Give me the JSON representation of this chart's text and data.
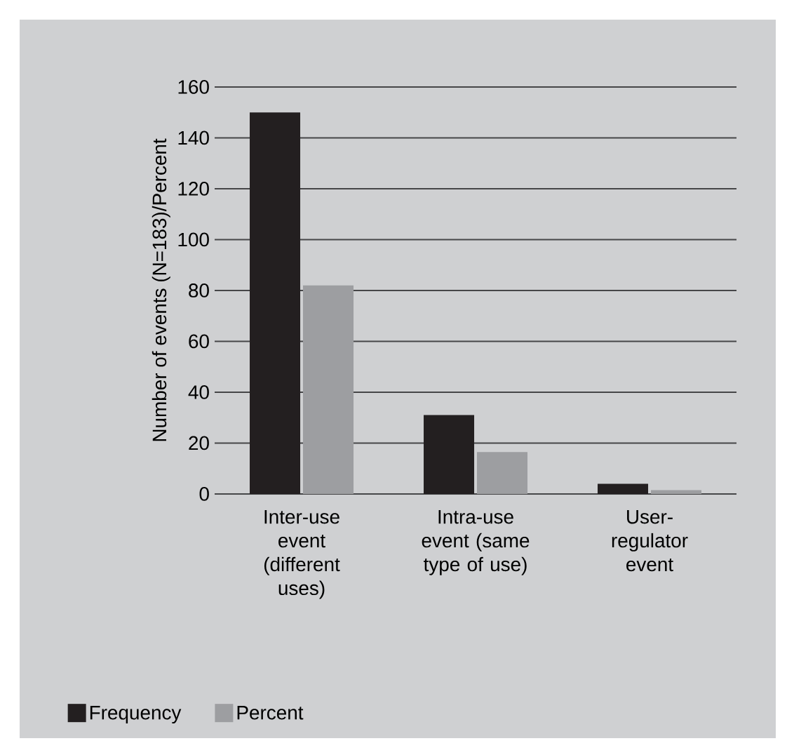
{
  "chart_data": {
    "type": "bar",
    "ylabel": "Number of events (N=183)/Percent",
    "categories": [
      "Inter-use event (different uses)",
      "Intra-use event (same type of use)",
      "User-regulator event"
    ],
    "series": [
      {
        "name": "Frequency",
        "color": "#231f20",
        "values": [
          150,
          31,
          4
        ]
      },
      {
        "name": "Percent",
        "color": "#9d9ea1",
        "values": [
          82,
          16.5,
          1.5
        ]
      }
    ],
    "ylim": [
      0,
      160
    ],
    "yticks": [
      0,
      20,
      40,
      60,
      80,
      100,
      120,
      140,
      160
    ],
    "grid": "y",
    "legend": "bottom left"
  }
}
